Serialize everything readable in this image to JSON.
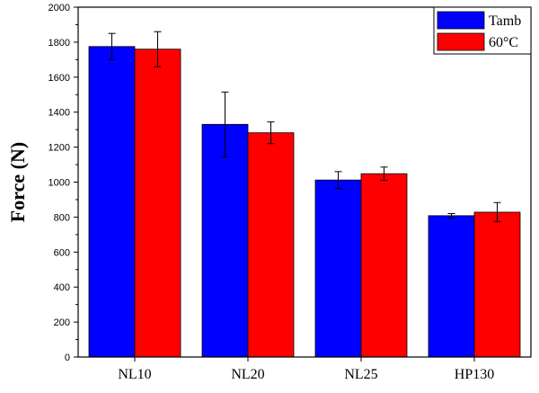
{
  "chart_data": {
    "type": "bar",
    "title": "",
    "xlabel": "",
    "ylabel": "Force (N)",
    "ylim": [
      0,
      2000
    ],
    "ytick_step": 200,
    "categories": [
      "NL10",
      "NL20",
      "NL25",
      "HP130"
    ],
    "series": [
      {
        "name": "Tamb",
        "color": "#0000ff",
        "values": [
          1775,
          1330,
          1012,
          808
        ],
        "errors": [
          75,
          185,
          48,
          12
        ]
      },
      {
        "name": "60°C",
        "color": "#ff0000",
        "values": [
          1760,
          1282,
          1048,
          828
        ],
        "errors": [
          100,
          62,
          38,
          55
        ]
      }
    ],
    "legend_position": "top-right"
  }
}
